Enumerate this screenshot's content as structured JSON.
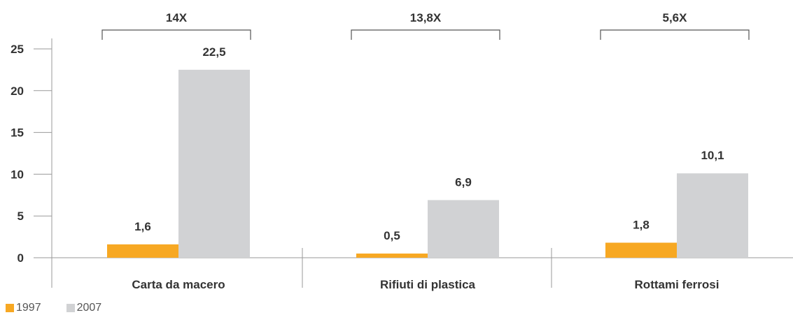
{
  "colors": {
    "s1997": "#f7a823",
    "s2007": "#d1d2d4",
    "axis": "#9a9a9a",
    "text": "#333333"
  },
  "chart_data": {
    "type": "bar",
    "title": "",
    "xlabel": "",
    "ylabel": "",
    "ylim": [
      0,
      25
    ],
    "yticks": [
      "0",
      "5",
      "10",
      "15",
      "20",
      "25"
    ],
    "categories": [
      "Carta da macero",
      "Rifiuti di plastica",
      "Rottami ferrosi"
    ],
    "series": [
      {
        "name": "1997",
        "values": [
          1.6,
          0.5,
          1.8
        ],
        "labels": [
          "1,6",
          "0,5",
          "1,8"
        ]
      },
      {
        "name": "2007",
        "values": [
          22.5,
          6.9,
          10.1
        ],
        "labels": [
          "22,5",
          "6,9",
          "10,1"
        ]
      }
    ],
    "multipliers": [
      "14X",
      "13,8X",
      "5,6X"
    ],
    "legend": {
      "placement": "bottom-left",
      "items": [
        "1997",
        "2007"
      ]
    },
    "grid": false
  }
}
